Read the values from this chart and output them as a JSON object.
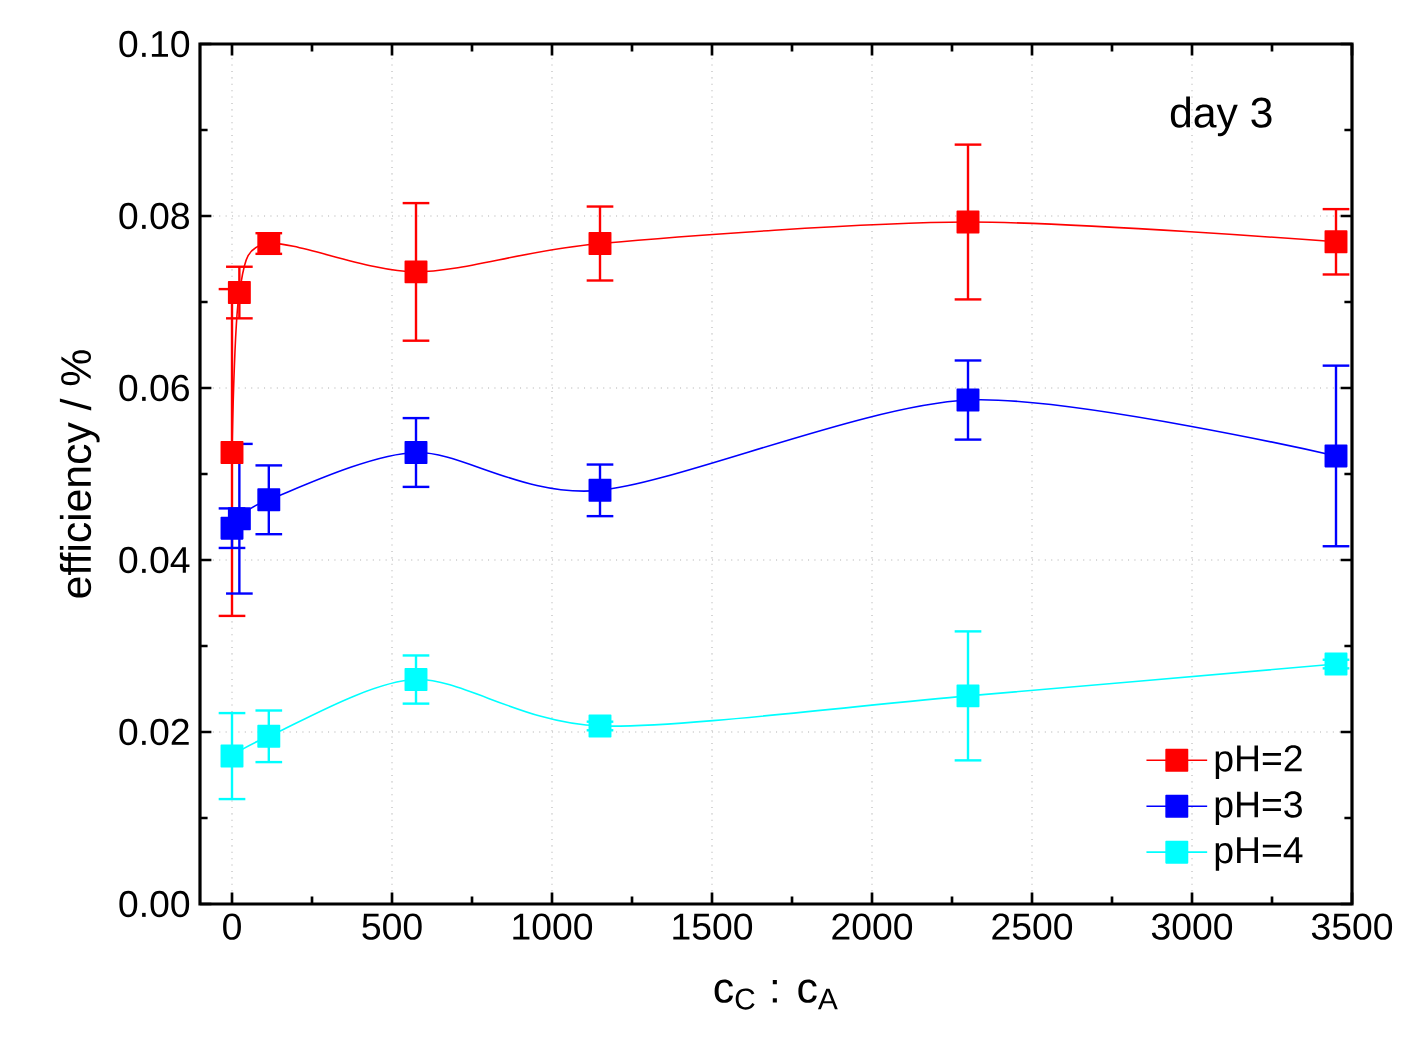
{
  "chart_data": {
    "type": "line",
    "xlabel": "c$_{C}$ : c$_{A}$",
    "ylabel": "efficiency / %",
    "annotations": [
      "day 3"
    ],
    "x": [
      0,
      23,
      115,
      575,
      1150,
      2300,
      3450
    ],
    "series": [
      {
        "name": "pH=2",
        "color": "#ff0000",
        "values": [
          0.0525,
          0.0711,
          0.0768,
          0.0735,
          0.0768,
          0.0793,
          0.077
        ],
        "errors": [
          0.019,
          0.003,
          0.0012,
          0.008,
          0.0043,
          0.009,
          0.0038
        ]
      },
      {
        "name": "pH=3",
        "color": "#0000ff",
        "values": [
          0.0437,
          0.0448,
          0.047,
          0.0525,
          0.0481,
          0.0586,
          0.0521
        ],
        "errors": [
          0.0023,
          0.0087,
          0.004,
          0.004,
          0.003,
          0.0046,
          0.0105
        ]
      },
      {
        "name": "pH=4",
        "color": "#00ffff",
        "values": [
          0.0172,
          null,
          0.0195,
          0.0261,
          0.0207,
          0.0242,
          0.0279
        ],
        "errors": [
          0.005,
          null,
          0.003,
          0.0028,
          0.0005,
          0.0075,
          0.0005
        ]
      }
    ],
    "xlim": [
      -100,
      3500
    ],
    "ylim": [
      0,
      0.1
    ],
    "xticks": [
      0,
      500,
      1000,
      1500,
      2000,
      2500,
      3000,
      3500
    ],
    "yticks": [
      {
        "value": 0,
        "label": "0.00"
      },
      {
        "value": 0.02,
        "label": "0.02"
      },
      {
        "value": 0.04,
        "label": "0.04"
      },
      {
        "value": 0.06,
        "label": "0.06"
      },
      {
        "value": 0.08,
        "label": "0.08"
      },
      {
        "value": 0.1,
        "label": "0.10"
      }
    ],
    "grid": true,
    "legend": "bottom right",
    "marker": "square",
    "line_style": "solid"
  }
}
